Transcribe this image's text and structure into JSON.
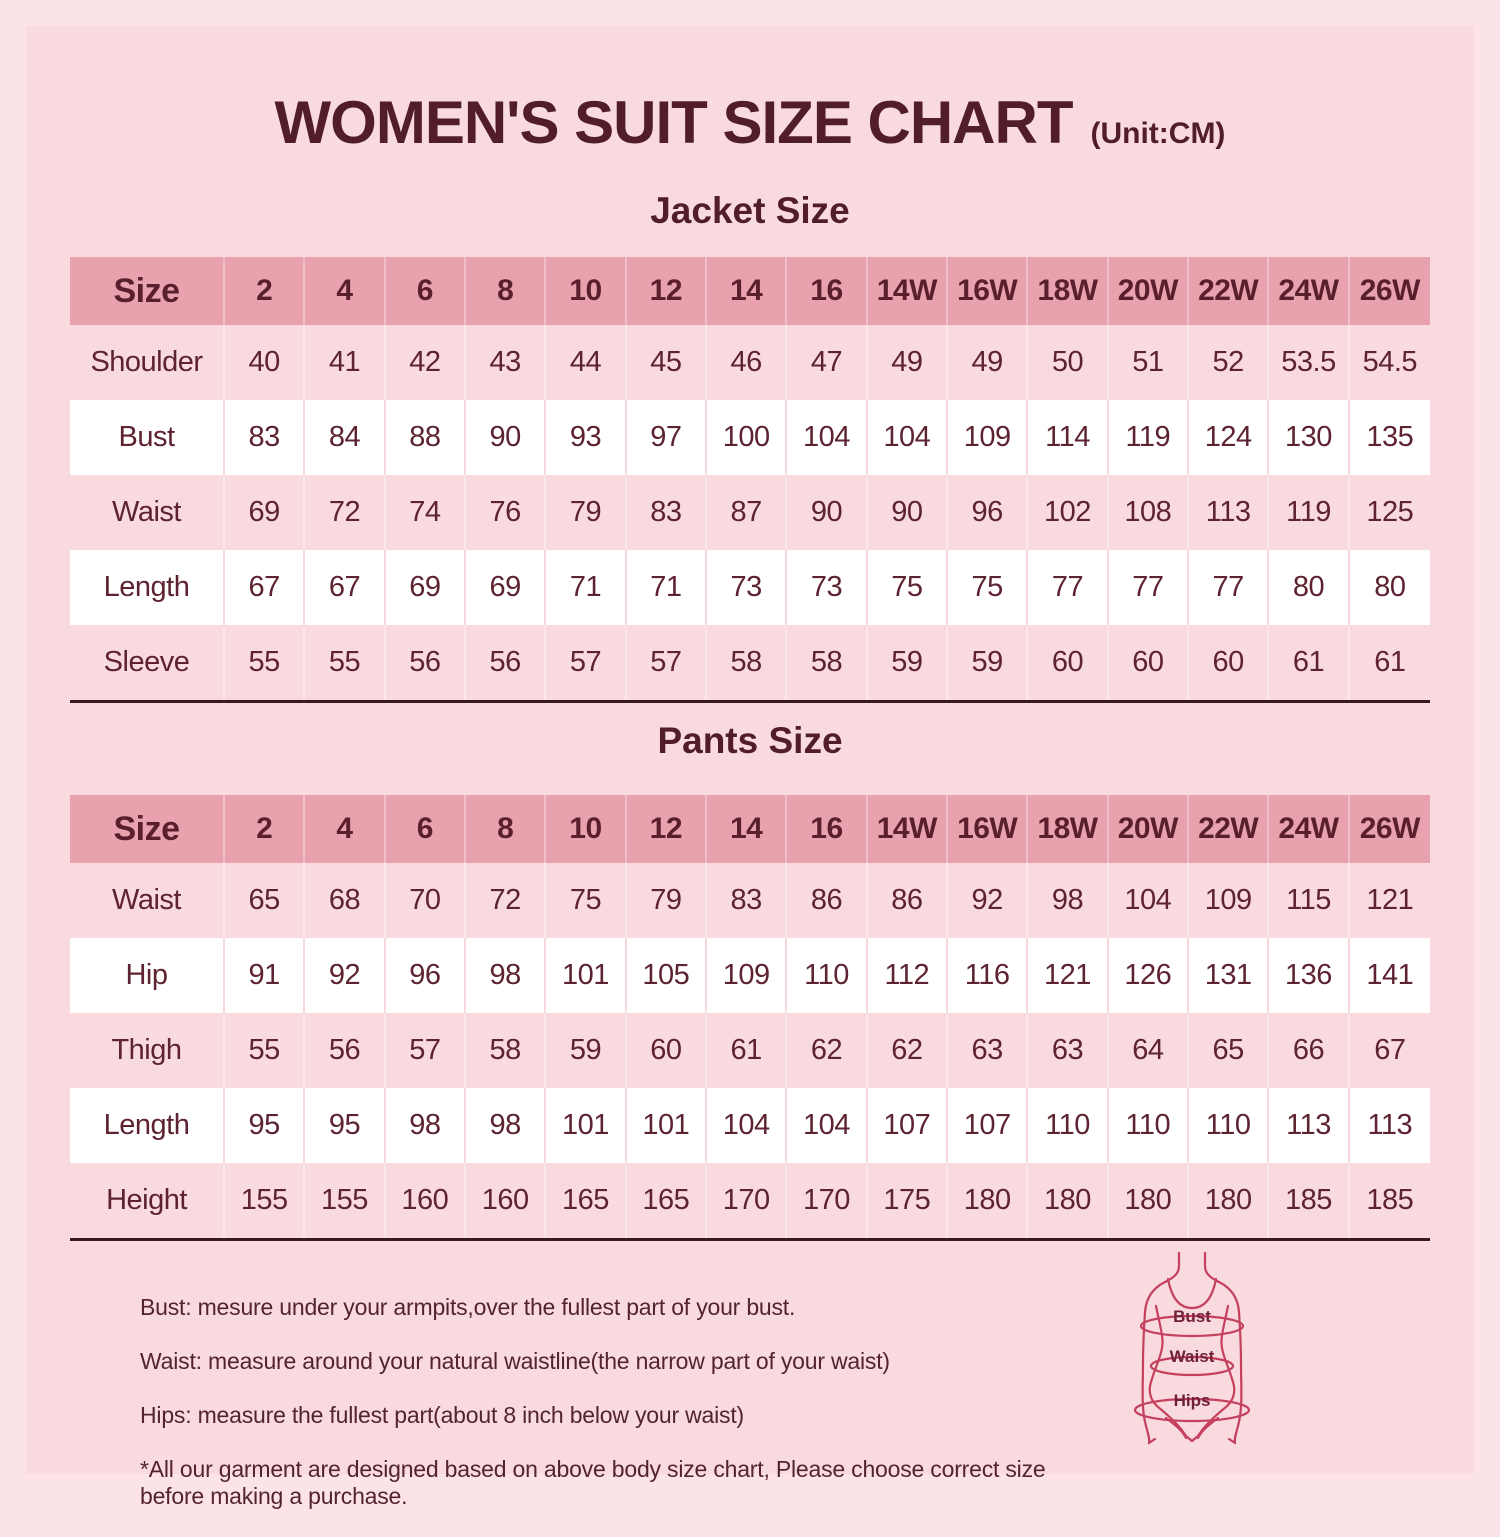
{
  "title": {
    "text": "WOMEN'S SUIT SIZE CHART",
    "unit": "(Unit:CM)"
  },
  "chart_data": [
    {
      "type": "table",
      "title": "Jacket Size",
      "columns": [
        "Size",
        "2",
        "4",
        "6",
        "8",
        "10",
        "12",
        "14",
        "16",
        "14W",
        "16W",
        "18W",
        "20W",
        "22W",
        "24W",
        "26W"
      ],
      "rows": [
        [
          "Shoulder",
          "40",
          "41",
          "42",
          "43",
          "44",
          "45",
          "46",
          "47",
          "49",
          "49",
          "50",
          "51",
          "52",
          "53.5",
          "54.5"
        ],
        [
          "Bust",
          "83",
          "84",
          "88",
          "90",
          "93",
          "97",
          "100",
          "104",
          "104",
          "109",
          "114",
          "119",
          "124",
          "130",
          "135"
        ],
        [
          "Waist",
          "69",
          "72",
          "74",
          "76",
          "79",
          "83",
          "87",
          "90",
          "90",
          "96",
          "102",
          "108",
          "113",
          "119",
          "125"
        ],
        [
          "Length",
          "67",
          "67",
          "69",
          "69",
          "71",
          "71",
          "73",
          "73",
          "75",
          "75",
          "77",
          "77",
          "77",
          "80",
          "80"
        ],
        [
          "Sleeve",
          "55",
          "55",
          "56",
          "56",
          "57",
          "57",
          "58",
          "58",
          "59",
          "59",
          "60",
          "60",
          "60",
          "61",
          "61"
        ]
      ]
    },
    {
      "type": "table",
      "title": "Pants Size",
      "columns": [
        "Size",
        "2",
        "4",
        "6",
        "8",
        "10",
        "12",
        "14",
        "16",
        "14W",
        "16W",
        "18W",
        "20W",
        "22W",
        "24W",
        "26W"
      ],
      "rows": [
        [
          "Waist",
          "65",
          "68",
          "70",
          "72",
          "75",
          "79",
          "83",
          "86",
          "86",
          "92",
          "98",
          "104",
          "109",
          "115",
          "121"
        ],
        [
          "Hip",
          "91",
          "92",
          "96",
          "98",
          "101",
          "105",
          "109",
          "110",
          "112",
          "116",
          "121",
          "126",
          "131",
          "136",
          "141"
        ],
        [
          "Thigh",
          "55",
          "56",
          "57",
          "58",
          "59",
          "60",
          "61",
          "62",
          "62",
          "63",
          "63",
          "64",
          "65",
          "66",
          "67"
        ],
        [
          "Length",
          "95",
          "95",
          "98",
          "98",
          "101",
          "101",
          "104",
          "104",
          "107",
          "107",
          "110",
          "110",
          "110",
          "113",
          "113"
        ],
        [
          "Height",
          "155",
          "155",
          "160",
          "160",
          "165",
          "165",
          "170",
          "170",
          "175",
          "180",
          "180",
          "180",
          "180",
          "185",
          "185"
        ]
      ]
    }
  ],
  "notes": [
    "Bust: mesure under your armpits,over the fullest part of your bust.",
    "Waist: measure around your natural waistline(the narrow part of your waist)",
    "Hips: measure the fullest part(about 8 inch below your waist)",
    "*All our garment are designed based on above body size chart, Please choose correct size before making a purchase."
  ],
  "figure": {
    "bust_label": "Bust",
    "waist_label": "Waist",
    "hips_label": "Hips"
  },
  "colors": {
    "background": "#f9dade",
    "frame": "#fce3e7",
    "header_row": "#e8a2ae",
    "alt_row": "#ffffff",
    "text_maroon": "#5e2330",
    "title_maroon": "#511d28",
    "divider": "#3a1a22",
    "figure_line": "#c4405c"
  }
}
